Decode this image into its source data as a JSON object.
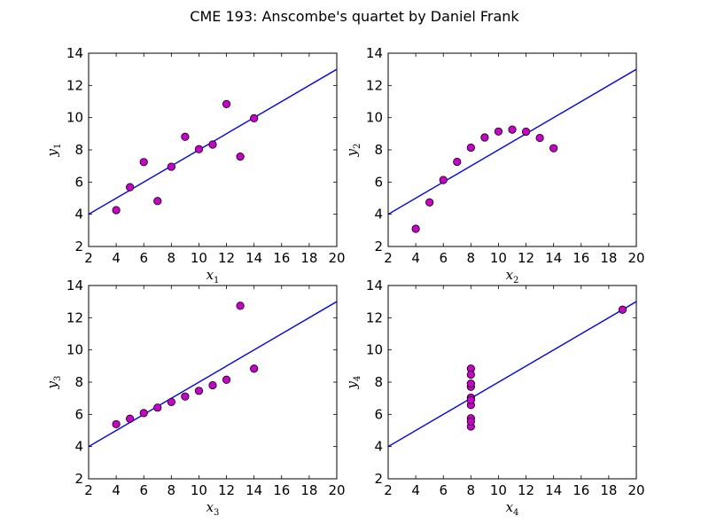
{
  "title": "CME 193: Anscombe's quartet by Daniel Frank",
  "chart_data": [
    {
      "type": "scatter",
      "xlabel": "x1",
      "ylabel": "y1",
      "xlim": [
        2,
        20
      ],
      "ylim": [
        2,
        14
      ],
      "xticks": [
        2,
        4,
        6,
        8,
        10,
        12,
        14,
        16,
        18,
        20
      ],
      "yticks": [
        2,
        4,
        6,
        8,
        10,
        12,
        14
      ],
      "x": [
        10,
        8,
        13,
        9,
        11,
        14,
        6,
        4,
        12,
        7,
        5
      ],
      "y": [
        8.04,
        6.95,
        7.58,
        8.81,
        8.33,
        9.96,
        7.24,
        4.26,
        10.84,
        4.82,
        5.68
      ],
      "fit": {
        "intercept": 3,
        "slope": 0.5
      },
      "marker_color": "#cc00cc",
      "line_color": "#0000ff"
    },
    {
      "type": "scatter",
      "xlabel": "x2",
      "ylabel": "y2",
      "xlim": [
        2,
        20
      ],
      "ylim": [
        2,
        14
      ],
      "xticks": [
        2,
        4,
        6,
        8,
        10,
        12,
        14,
        16,
        18,
        20
      ],
      "yticks": [
        2,
        4,
        6,
        8,
        10,
        12,
        14
      ],
      "x": [
        10,
        8,
        13,
        9,
        11,
        14,
        6,
        4,
        12,
        7,
        5
      ],
      "y": [
        9.14,
        8.14,
        8.74,
        8.77,
        9.26,
        8.1,
        6.13,
        3.1,
        9.13,
        7.26,
        4.74
      ],
      "fit": {
        "intercept": 3,
        "slope": 0.5
      },
      "marker_color": "#cc00cc",
      "line_color": "#0000ff"
    },
    {
      "type": "scatter",
      "xlabel": "x3",
      "ylabel": "y3",
      "xlim": [
        2,
        20
      ],
      "ylim": [
        2,
        14
      ],
      "xticks": [
        2,
        4,
        6,
        8,
        10,
        12,
        14,
        16,
        18,
        20
      ],
      "yticks": [
        2,
        4,
        6,
        8,
        10,
        12,
        14
      ],
      "x": [
        10,
        8,
        13,
        9,
        11,
        14,
        6,
        4,
        12,
        7,
        5
      ],
      "y": [
        7.46,
        6.77,
        12.74,
        7.11,
        7.81,
        8.84,
        6.08,
        5.39,
        8.15,
        6.42,
        5.73
      ],
      "fit": {
        "intercept": 3,
        "slope": 0.5
      },
      "marker_color": "#cc00cc",
      "line_color": "#0000ff"
    },
    {
      "type": "scatter",
      "xlabel": "x4",
      "ylabel": "y4",
      "xlim": [
        2,
        20
      ],
      "ylim": [
        2,
        14
      ],
      "xticks": [
        2,
        4,
        6,
        8,
        10,
        12,
        14,
        16,
        18,
        20
      ],
      "yticks": [
        2,
        4,
        6,
        8,
        10,
        12,
        14
      ],
      "x": [
        8,
        8,
        8,
        8,
        8,
        8,
        8,
        19,
        8,
        8,
        8
      ],
      "y": [
        6.58,
        5.76,
        7.71,
        8.84,
        8.47,
        7.04,
        5.25,
        12.5,
        5.56,
        7.91,
        6.89
      ],
      "fit": {
        "intercept": 3,
        "slope": 0.5
      },
      "marker_color": "#cc00cc",
      "line_color": "#0000ff"
    }
  ]
}
